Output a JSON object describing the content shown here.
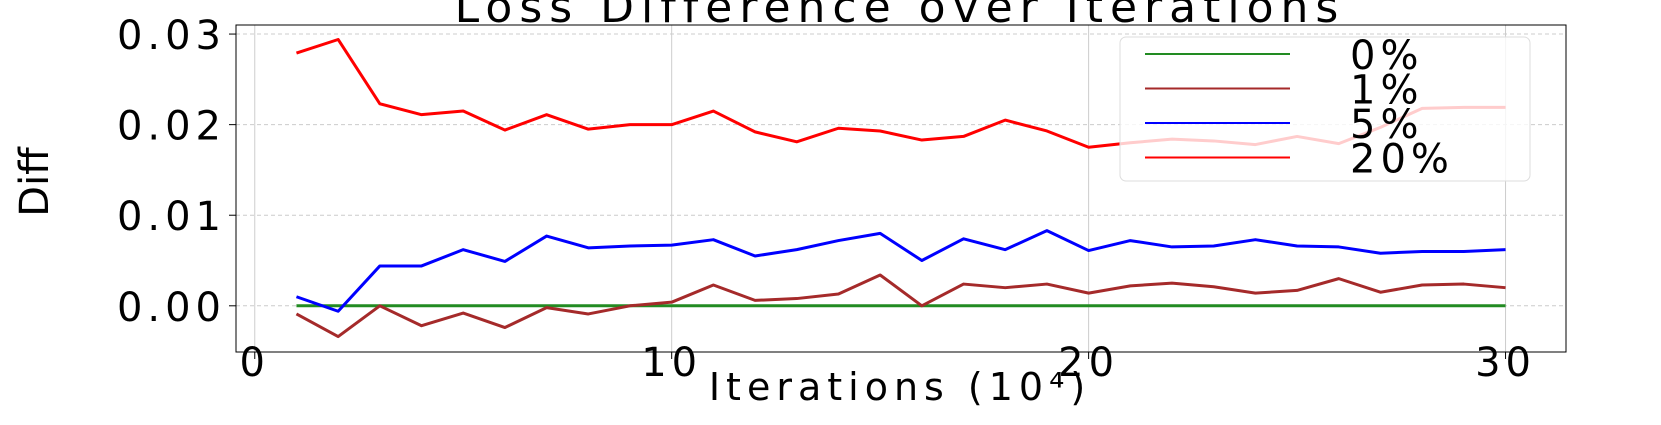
{
  "chart_data": {
    "type": "line",
    "title": "Loss Difference over Iterations",
    "xlabel": "Iterations (10⁴)",
    "ylabel": "Diff",
    "x": [
      1,
      2,
      3,
      4,
      5,
      6,
      7,
      8,
      9,
      10,
      11,
      12,
      13,
      14,
      15,
      16,
      17,
      18,
      19,
      20,
      21,
      22,
      23,
      24,
      25,
      26,
      27,
      28,
      29,
      30
    ],
    "series": [
      {
        "name": "0%",
        "color": "#228b22",
        "values": [
          0,
          0,
          0,
          0,
          0,
          0,
          0,
          0,
          0,
          0,
          0,
          0,
          0,
          0,
          0,
          0,
          0,
          0,
          0,
          0,
          0,
          0,
          0,
          0,
          0,
          0,
          0,
          0,
          0,
          0
        ]
      },
      {
        "name": "1%",
        "color": "#a52a2a",
        "values": [
          -0.0009,
          -0.0034,
          0.0,
          -0.0022,
          -0.0008,
          -0.0024,
          -0.0002,
          -0.0009,
          0.0,
          0.0004,
          0.0023,
          0.0006,
          0.0008,
          0.0013,
          0.0034,
          0.0,
          0.0024,
          0.002,
          0.0024,
          0.0014,
          0.0022,
          0.0025,
          0.0021,
          0.0014,
          0.0017,
          0.003,
          0.0015,
          0.0023,
          0.0024,
          0.002
        ]
      },
      {
        "name": "5%",
        "color": "#0000ff",
        "values": [
          0.001,
          -0.0006,
          0.0044,
          0.0044,
          0.0062,
          0.0049,
          0.0077,
          0.0064,
          0.0066,
          0.0067,
          0.0073,
          0.0055,
          0.0062,
          0.0072,
          0.008,
          0.005,
          0.0074,
          0.0062,
          0.0083,
          0.0061,
          0.0072,
          0.0065,
          0.0066,
          0.0073,
          0.0066,
          0.0065,
          0.0058,
          0.006,
          0.006,
          0.0062
        ]
      },
      {
        "name": "20%",
        "color": "#ff0000",
        "values": [
          0.0279,
          0.0294,
          0.0223,
          0.0211,
          0.0215,
          0.0194,
          0.0211,
          0.0195,
          0.02,
          0.02,
          0.0215,
          0.0192,
          0.0181,
          0.0196,
          0.0193,
          0.0183,
          0.0187,
          0.0205,
          0.0193,
          0.0175,
          0.018,
          0.0184,
          0.0182,
          0.0178,
          0.0187,
          0.0179,
          0.0197,
          0.0218,
          0.0219,
          0.0219
        ]
      }
    ],
    "xlim": [
      -0.45,
      31.45
    ],
    "xticks": [
      0,
      10,
      20,
      30
    ],
    "ylim": [
      -0.0051,
      0.031
    ],
    "yticks": [
      {
        "value": 0,
        "label": "0.00"
      },
      0.01,
      0.02,
      0.03
    ],
    "grid": true,
    "legend": "upper right"
  }
}
